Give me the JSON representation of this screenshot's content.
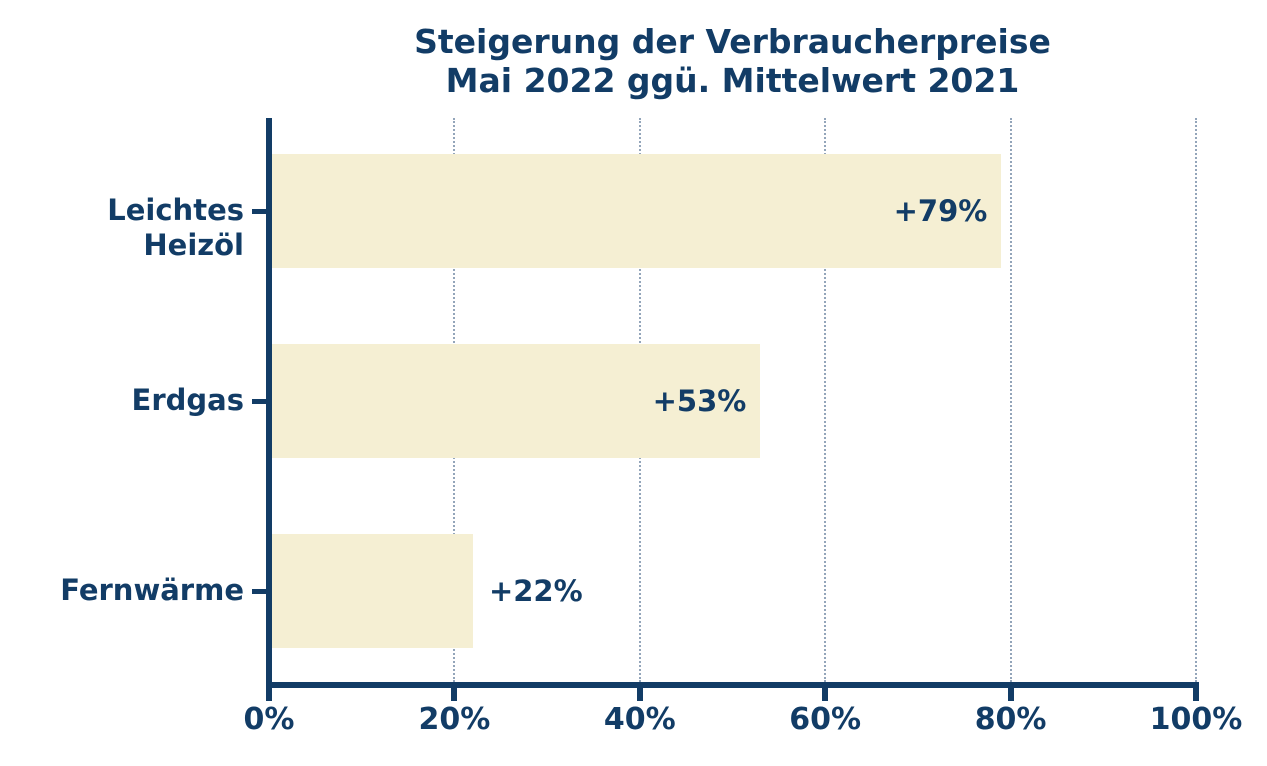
{
  "chart_data": {
    "type": "bar",
    "orientation": "horizontal",
    "title_line1": "Steigerung der Verbraucherpreise",
    "title_line2": "Mai 2022 ggü. Mittelwert 2021",
    "categories": [
      "Leichtes Heizöl",
      "Erdgas",
      "Fernwärme"
    ],
    "values": [
      79,
      53,
      22
    ],
    "value_labels": [
      "+79%",
      "+53%",
      "+22%"
    ],
    "value_label_inside": [
      true,
      true,
      false
    ],
    "xlim": [
      0,
      100
    ],
    "x_ticks": [
      0,
      20,
      40,
      60,
      80,
      100
    ],
    "x_tick_labels": [
      "0%",
      "20%",
      "40%",
      "60%",
      "80%",
      "100%"
    ],
    "grid": "vertical-dotted-at-x-ticks",
    "legend": "none",
    "colors": {
      "bar": "#f5efd3",
      "text": "#123c66",
      "axis": "#123c66",
      "gridline": "#93a5ba",
      "background": "#ffffff"
    }
  }
}
